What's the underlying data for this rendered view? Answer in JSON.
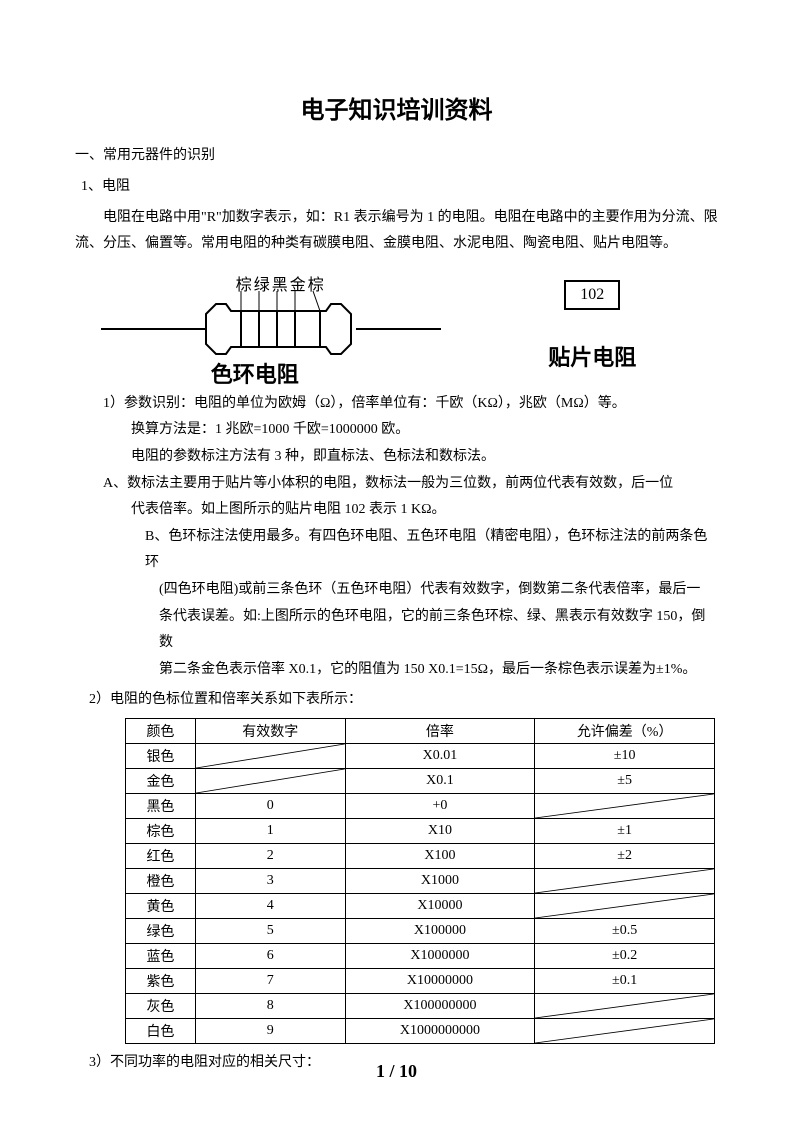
{
  "title": "电子知识培训资料",
  "section1_heading": "一、常用元器件的识别",
  "sub1_heading": "1、电阻",
  "para1": "电阻在电路中用\"R\"加数字表示，如：R1 表示编号为 1 的电阻。电阻在电路中的主要作用为分流、限流、分压、偏置等。常用电阻的种类有碳膜电阻、金膜电阻、水泥电阻、陶瓷电阻、贴片电阻等。",
  "diagram": {
    "color_labels": "棕绿黑金棕",
    "left_caption": "色环电阻",
    "smd_value": "102",
    "right_caption": "贴片电阻"
  },
  "param1_line1": "1）参数识别：电阻的单位为欧姆（Ω），倍率单位有：千欧（KΩ），兆欧（MΩ）等。",
  "param1_line2": "换算方法是：1 兆欧=1000 千欧=1000000 欧。",
  "param1_line3": "电阻的参数标注方法有 3 种，即直标法、色标法和数标法。",
  "itemA_line1": "A、数标法主要用于贴片等小体积的电阻，数标法一般为三位数，前两位代表有效数，后一位",
  "itemA_line2": "代表倍率。如上图所示的贴片电阻 102 表示 1 KΩ。",
  "itemB_line1": "B、色环标注法使用最多。有四色环电阻、五色环电阻（精密电阻），色环标注法的前两条色环",
  "itemB_line2": "(四色环电阻)或前三条色环（五色环电阻）代表有效数字，倒数第二条代表倍率，最后一",
  "itemB_line3": "条代表误差。如:上图所示的色环电阻，它的前三条色环棕、绿、黑表示有效数字 150，倒数",
  "itemB_line4": "第二条金色表示倍率 X0.1，它的阻值为 150 X0.1=15Ω，最后一条棕色表示误差为±1%。",
  "param2_heading": "2）电阻的色标位置和倍率关系如下表所示：",
  "table": {
    "headers": [
      "颜色",
      "有效数字",
      "倍率",
      "允许偏差（%）"
    ],
    "rows": [
      {
        "color": "银色",
        "digit": "",
        "mult": "X0.01",
        "tol": "±10",
        "diag_digit": true,
        "diag_tol": false
      },
      {
        "color": "金色",
        "digit": "",
        "mult": "X0.1",
        "tol": "±5",
        "diag_digit": true,
        "diag_tol": false
      },
      {
        "color": "黑色",
        "digit": "0",
        "mult": "+0",
        "tol": "",
        "diag_digit": false,
        "diag_tol": true
      },
      {
        "color": "棕色",
        "digit": "1",
        "mult": "X10",
        "tol": "±1",
        "diag_digit": false,
        "diag_tol": false
      },
      {
        "color": "红色",
        "digit": "2",
        "mult": "X100",
        "tol": "±2",
        "diag_digit": false,
        "diag_tol": false
      },
      {
        "color": "橙色",
        "digit": "3",
        "mult": "X1000",
        "tol": "",
        "diag_digit": false,
        "diag_tol": true
      },
      {
        "color": "黄色",
        "digit": "4",
        "mult": "X10000",
        "tol": "",
        "diag_digit": false,
        "diag_tol": true
      },
      {
        "color": "绿色",
        "digit": "5",
        "mult": "X100000",
        "tol": "±0.5",
        "diag_digit": false,
        "diag_tol": false
      },
      {
        "color": "蓝色",
        "digit": "6",
        "mult": "X1000000",
        "tol": "±0.2",
        "diag_digit": false,
        "diag_tol": false
      },
      {
        "color": "紫色",
        "digit": "7",
        "mult": "X10000000",
        "tol": "±0.1",
        "diag_digit": false,
        "diag_tol": false
      },
      {
        "color": "灰色",
        "digit": "8",
        "mult": "X100000000",
        "tol": "",
        "diag_digit": false,
        "diag_tol": true
      },
      {
        "color": "白色",
        "digit": "9",
        "mult": "X1000000000",
        "tol": "",
        "diag_digit": false,
        "diag_tol": true
      }
    ]
  },
  "param3_heading": "3）不同功率的电阻对应的相关尺寸：",
  "footer": "1 / 10"
}
